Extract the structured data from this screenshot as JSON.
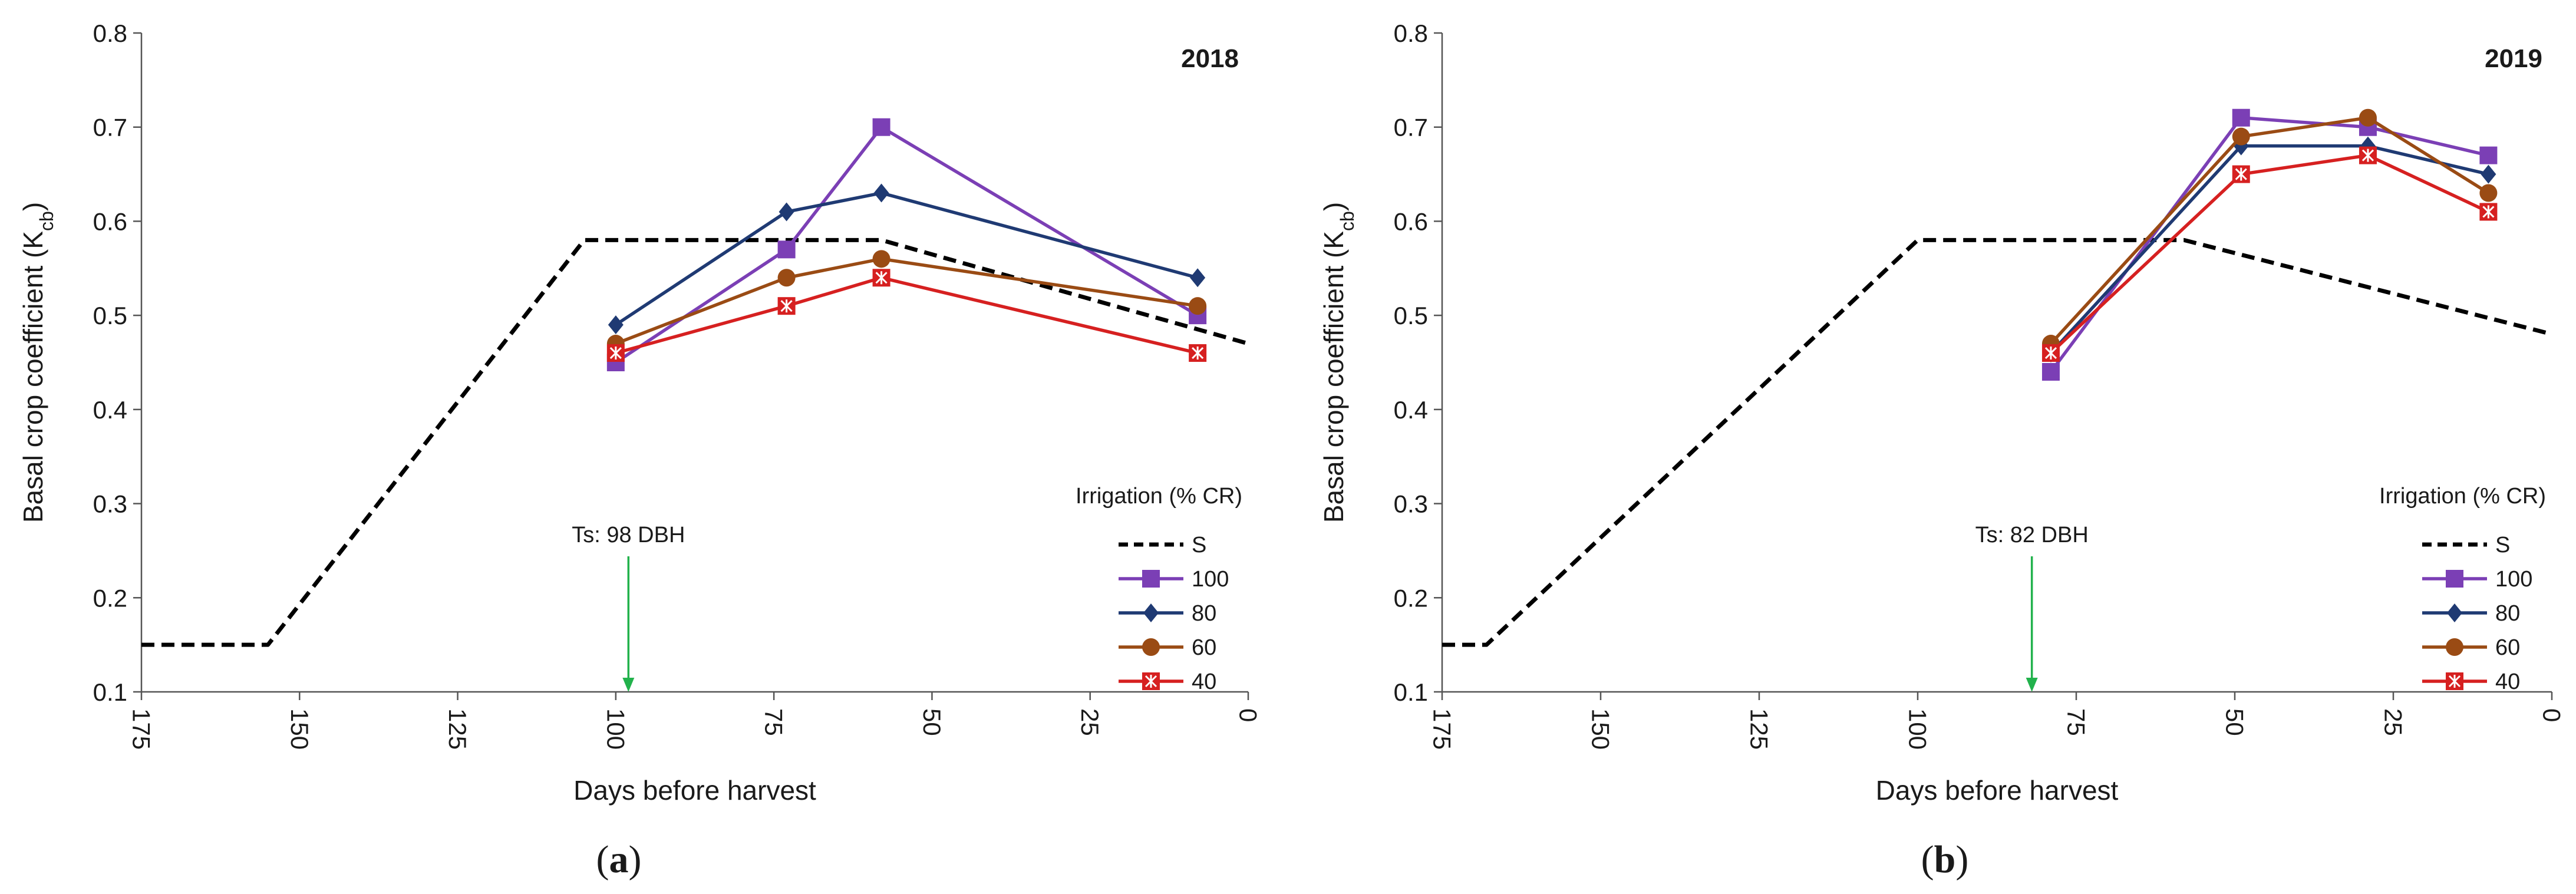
{
  "chart_data": [
    {
      "type": "line",
      "panel_label": "(a)",
      "panel_letter": "a",
      "year": "2018",
      "xlabel": "Days before harvest",
      "ylabel": "Basal crop coefficient (K",
      "ylabel_sub": "cb",
      "ylabel_close": ")",
      "xlim": [
        175,
        0
      ],
      "ylim": [
        0.1,
        0.8
      ],
      "x_ticks": [
        175,
        150,
        125,
        100,
        75,
        50,
        25,
        0
      ],
      "y_ticks": [
        "0.1",
        "0.2",
        "0.3",
        "0.4",
        "0.5",
        "0.6",
        "0.7",
        "0.8"
      ],
      "annotation": {
        "text": "Ts: 98 DBH",
        "x": 98,
        "arrow_color": "#22b24c"
      },
      "legend_title": "Irrigation (% CR)",
      "legend_position": "bottom-right",
      "series": [
        {
          "name": "S",
          "style": "dashed",
          "marker": "none",
          "color": "#000000",
          "points": [
            [
              175,
              0.15
            ],
            [
              155,
              0.15
            ],
            [
              105,
              0.58
            ],
            [
              58,
              0.58
            ],
            [
              0,
              0.47
            ]
          ]
        },
        {
          "name": "100",
          "style": "solid",
          "marker": "square",
          "color": "#7b3fb5",
          "points": [
            [
              100,
              0.45
            ],
            [
              73,
              0.57
            ],
            [
              58,
              0.7
            ],
            [
              8,
              0.5
            ]
          ]
        },
        {
          "name": "80",
          "style": "solid",
          "marker": "diamond",
          "color": "#1f3a73",
          "points": [
            [
              100,
              0.49
            ],
            [
              73,
              0.61
            ],
            [
              58,
              0.63
            ],
            [
              8,
              0.54
            ]
          ]
        },
        {
          "name": "60",
          "style": "solid",
          "marker": "circle",
          "color": "#9a4b14",
          "points": [
            [
              100,
              0.47
            ],
            [
              73,
              0.54
            ],
            [
              58,
              0.56
            ],
            [
              8,
              0.51
            ]
          ]
        },
        {
          "name": "40",
          "style": "solid",
          "marker": "asterisk",
          "color": "#d62020",
          "points": [
            [
              100,
              0.46
            ],
            [
              73,
              0.51
            ],
            [
              58,
              0.54
            ],
            [
              8,
              0.46
            ]
          ]
        }
      ]
    },
    {
      "type": "line",
      "panel_label": "(b)",
      "panel_letter": "b",
      "year": "2019",
      "xlabel": "Days before harvest",
      "ylabel": "Basal crop coefficient (K",
      "ylabel_sub": "cb",
      "ylabel_close": ")",
      "xlim": [
        175,
        0
      ],
      "ylim": [
        0.1,
        0.8
      ],
      "x_ticks": [
        175,
        150,
        125,
        100,
        75,
        50,
        25,
        0
      ],
      "y_ticks": [
        "0.1",
        "0.2",
        "0.3",
        "0.4",
        "0.5",
        "0.6",
        "0.7",
        "0.8"
      ],
      "annotation": {
        "text": "Ts: 82 DBH",
        "x": 82,
        "arrow_color": "#22b24c"
      },
      "legend_title": "Irrigation (% CR)",
      "legend_position": "bottom-right",
      "series": [
        {
          "name": "S",
          "style": "dashed",
          "marker": "none",
          "color": "#000000",
          "points": [
            [
              175,
              0.15
            ],
            [
              168,
              0.15
            ],
            [
              100,
              0.58
            ],
            [
              58,
              0.58
            ],
            [
              0,
              0.48
            ]
          ]
        },
        {
          "name": "100",
          "style": "solid",
          "marker": "square",
          "color": "#7b3fb5",
          "points": [
            [
              79,
              0.44
            ],
            [
              49,
              0.71
            ],
            [
              29,
              0.7
            ],
            [
              10,
              0.67
            ]
          ]
        },
        {
          "name": "80",
          "style": "solid",
          "marker": "diamond",
          "color": "#1f3a73",
          "points": [
            [
              79,
              0.46
            ],
            [
              49,
              0.68
            ],
            [
              29,
              0.68
            ],
            [
              10,
              0.65
            ]
          ]
        },
        {
          "name": "60",
          "style": "solid",
          "marker": "circle",
          "color": "#9a4b14",
          "points": [
            [
              79,
              0.47
            ],
            [
              49,
              0.69
            ],
            [
              29,
              0.71
            ],
            [
              10,
              0.63
            ]
          ]
        },
        {
          "name": "40",
          "style": "solid",
          "marker": "asterisk",
          "color": "#d62020",
          "points": [
            [
              79,
              0.46
            ],
            [
              49,
              0.65
            ],
            [
              29,
              0.67
            ],
            [
              10,
              0.61
            ]
          ]
        }
      ]
    }
  ]
}
